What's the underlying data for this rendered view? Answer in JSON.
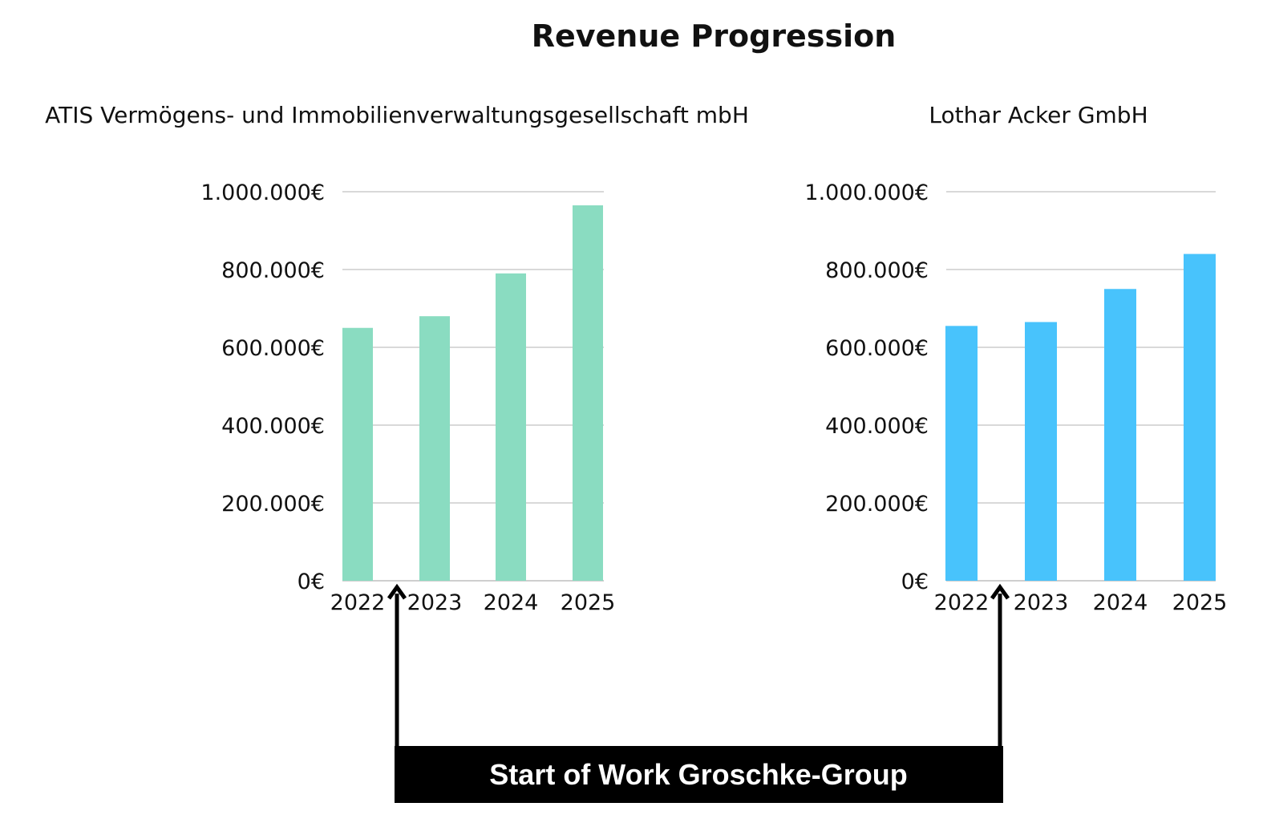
{
  "chart_data": [
    {
      "type": "bar",
      "title": "ATIS Vermögens- und Immobilienverwaltungsgesellschaft mbH",
      "categories": [
        "2022",
        "2023",
        "2024",
        "2025"
      ],
      "values": [
        650000,
        680000,
        790000,
        965000
      ],
      "color": "#8adcc1",
      "ylim": [
        0,
        1000000
      ],
      "yticks": [
        0,
        200000,
        400000,
        600000,
        800000,
        1000000
      ],
      "ytick_labels": [
        "0€",
        "200.000€",
        "400.000€",
        "600.000€",
        "800.000€",
        "1.000.000€"
      ],
      "grid": true
    },
    {
      "type": "bar",
      "title": "Lothar Acker GmbH",
      "categories": [
        "2022",
        "2023",
        "2024",
        "2025"
      ],
      "values": [
        655000,
        665000,
        750000,
        840000
      ],
      "color": "#48c3fc",
      "ylim": [
        0,
        1000000
      ],
      "yticks": [
        0,
        200000,
        400000,
        600000,
        800000,
        1000000
      ],
      "ytick_labels": [
        "0€",
        "200.000€",
        "400.000€",
        "600.000€",
        "800.000€",
        "1.000.000€"
      ],
      "grid": true
    }
  ],
  "title": "Revenue Progression",
  "annotation": "Start of Work Groschke-Group"
}
